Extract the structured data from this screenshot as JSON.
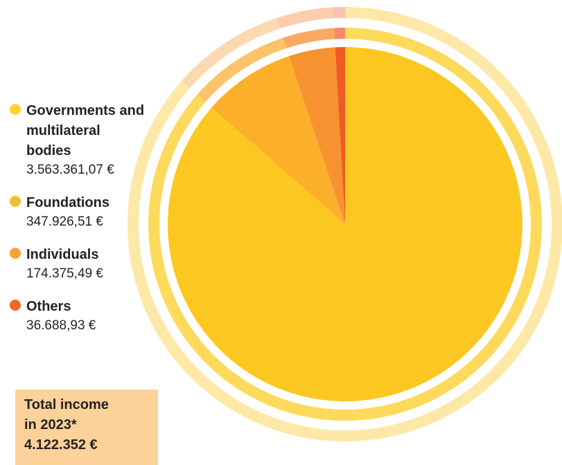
{
  "chart_data": {
    "type": "pie",
    "categories": [
      "Governments and multilateral bodies",
      "Foundations",
      "Individuals",
      "Others"
    ],
    "labels": [
      "Governments and multilateral bodies",
      "Foundations",
      "Individuals",
      "Others"
    ],
    "amounts": [
      "3.563.361,07 €",
      "347.926,51 €",
      "174.375,49 €",
      "36.688,93 €"
    ],
    "values": [
      3563361.07,
      347926.51,
      174375.49,
      36688.93
    ],
    "colors": [
      "#fdc721",
      "#fbaf2b",
      "#f6922f",
      "#f05a24"
    ],
    "legend_dot_colors": [
      "#fdd235",
      "#fbbb34",
      "#f6a335",
      "#ee682a"
    ],
    "outer_ring_colors": [
      "#fde8a8",
      "#fdd9b2",
      "#fccdae",
      "#f9c3b1"
    ],
    "middle_ring_colors": [
      "#fdd95c",
      "#fcc36b",
      "#f9aa62",
      "#f58a6b"
    ],
    "legend_position": "left"
  },
  "total": {
    "line1": "Total income",
    "line2": "in 2023*",
    "line3": "4.122.352 €"
  }
}
